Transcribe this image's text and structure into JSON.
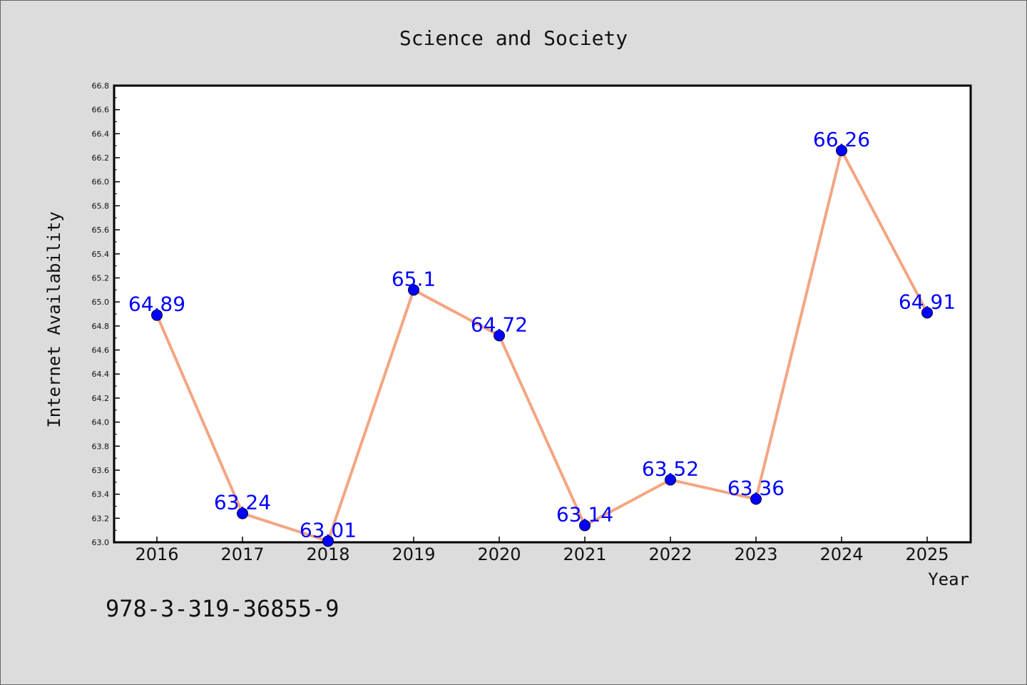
{
  "chart_data": {
    "type": "line",
    "title": "Science and Society",
    "xlabel": "Year",
    "ylabel": "Internet Availability",
    "categories": [
      "2016",
      "2017",
      "2018",
      "2019",
      "2020",
      "2021",
      "2022",
      "2023",
      "2024",
      "2025"
    ],
    "series": [
      {
        "values": [
          64.89,
          63.24,
          63.01,
          65.1,
          64.72,
          63.14,
          63.52,
          63.36,
          66.26,
          64.91
        ],
        "data_labels": [
          "64.89",
          "63.24",
          "63.01",
          "65.1",
          "64.72",
          "63.14",
          "63.52",
          "63.36",
          "66.26",
          "64.91"
        ]
      }
    ],
    "ylim": [
      63.0,
      66.8
    ],
    "yticks": [
      "63.0",
      "63.2",
      "63.4",
      "63.6",
      "63.8",
      "64.0",
      "64.2",
      "64.4",
      "64.6",
      "64.8",
      "65.0",
      "65.2",
      "65.4",
      "65.6",
      "65.8",
      "66.0",
      "66.2",
      "66.4",
      "66.6",
      "66.8"
    ],
    "grid": false,
    "legend": "none",
    "colors": {
      "line": "#f4a582",
      "marker": "#0000ff",
      "data_label": "#0000ff",
      "background": "#dcdcdc",
      "plot_background": "#ffffff"
    }
  },
  "footer": {
    "isbn": "978-3-319-36855-9"
  }
}
